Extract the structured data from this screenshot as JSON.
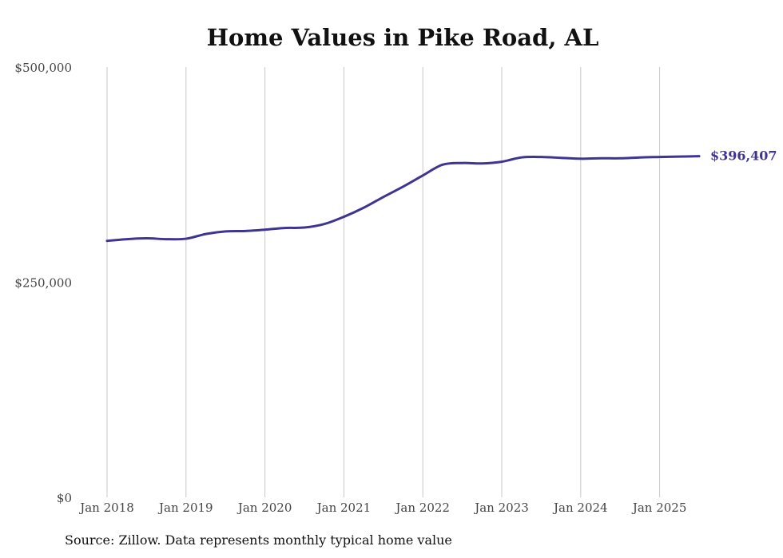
{
  "chart_data": {
    "type": "line",
    "title": "Home Values in Pike Road, AL",
    "xlabel": "",
    "ylabel": "",
    "ylim": [
      0,
      500000
    ],
    "y_ticks": [
      "$0",
      "$250,000",
      "$500,000"
    ],
    "y_tick_values": [
      0,
      250000,
      500000
    ],
    "x_ticks": [
      "Jan 2018",
      "Jan 2019",
      "Jan 2020",
      "Jan 2021",
      "Jan 2022",
      "Jan 2023",
      "Jan 2024",
      "Jan 2025"
    ],
    "x_tick_values": [
      2018.0,
      2019.0,
      2020.0,
      2021.0,
      2022.0,
      2023.0,
      2024.0,
      2025.0
    ],
    "xlim": [
      2018.0,
      2025.5
    ],
    "grid": "vertical",
    "line_color": "#3e3592",
    "series": [
      {
        "x": [
          2018.0,
          2018.25,
          2018.5,
          2018.75,
          2019.0,
          2019.25,
          2019.5,
          2019.75,
          2020.0,
          2020.25,
          2020.5,
          2020.75,
          2021.0,
          2021.25,
          2021.5,
          2021.75,
          2022.0,
          2022.25,
          2022.5,
          2022.75,
          2023.0,
          2023.25,
          2023.5,
          2023.75,
          2024.0,
          2024.25,
          2024.5,
          2024.75,
          2025.0,
          2025.25,
          2025.5
        ],
        "values": [
          298000,
          300000,
          301000,
          300000,
          300500,
          306000,
          309000,
          309500,
          311000,
          313000,
          313500,
          317500,
          326000,
          336500,
          349000,
          361000,
          374000,
          386500,
          388500,
          388000,
          390000,
          395000,
          395500,
          394500,
          393500,
          394000,
          394000,
          395000,
          395500,
          396000,
          396407
        ]
      }
    ],
    "end_label": "$396,407"
  },
  "footer": {
    "source": "Source: Zillow. Data represents monthly typical home value"
  }
}
